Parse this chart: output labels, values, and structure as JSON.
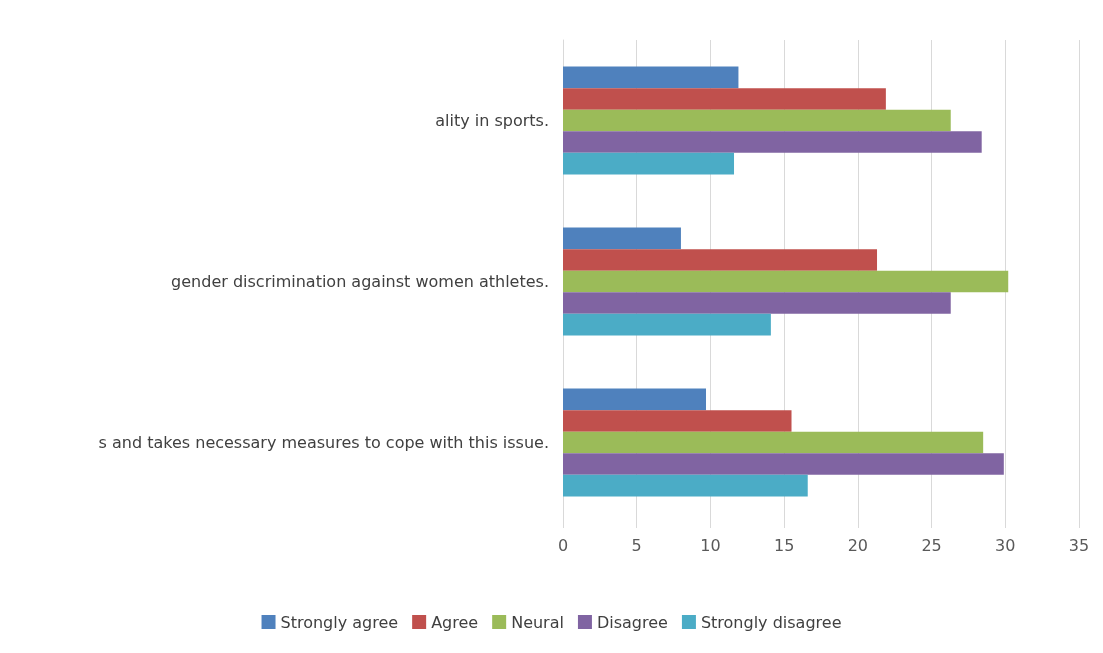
{
  "chart_data": {
    "type": "bar",
    "orientation": "horizontal",
    "categories": [
      "ality in sports.",
      "gender discrimination against women athletes.",
      "s and takes necessary measures to cope with this issue."
    ],
    "series": [
      {
        "name": "Strongly agree",
        "color": "#4f81bd",
        "values": [
          11.9,
          8.0,
          9.7
        ]
      },
      {
        "name": "Agree",
        "color": "#c0504d",
        "values": [
          21.9,
          21.3,
          15.5
        ]
      },
      {
        "name": "Neural",
        "color": "#9bbb59",
        "values": [
          26.3,
          30.2,
          28.5
        ]
      },
      {
        "name": "Disagree",
        "color": "#8064a2",
        "values": [
          28.4,
          26.3,
          29.9
        ]
      },
      {
        "name": "Strongly disagree",
        "color": "#4bacc6",
        "values": [
          11.6,
          14.1,
          16.6
        ]
      }
    ],
    "xlim": [
      0,
      35
    ],
    "xticks": [
      0,
      5,
      10,
      15,
      20,
      25,
      30,
      35
    ],
    "grid": "x",
    "legend": "bottom"
  }
}
